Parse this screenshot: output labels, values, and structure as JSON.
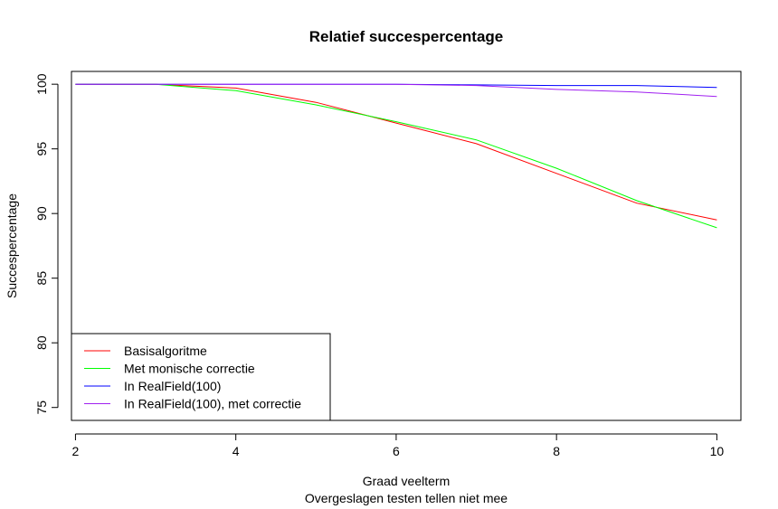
{
  "chart_data": {
    "type": "line",
    "title": "Relatief succespercentage",
    "xlabel": "Graad veelterm",
    "subxlabel": "Overgeslagen testen tellen niet mee",
    "ylabel": "Succespercentage",
    "xlim": [
      1.95,
      10.3
    ],
    "ylim": [
      74.0,
      100.99
    ],
    "xticks": [
      2,
      4,
      6,
      8,
      10
    ],
    "yticks": [
      75,
      80,
      85,
      90,
      95,
      100
    ],
    "x": [
      2,
      3,
      4,
      5,
      6,
      7,
      8,
      9,
      10
    ],
    "series": [
      {
        "name": "Basisalgoritme",
        "color": "#ff0000",
        "values": [
          100.0,
          100.0,
          99.7,
          98.6,
          97.0,
          95.4,
          93.1,
          90.8,
          89.5
        ]
      },
      {
        "name": "Met monische correctie",
        "color": "#00ff00",
        "values": [
          100.0,
          100.0,
          99.5,
          98.4,
          97.1,
          95.7,
          93.5,
          91.0,
          88.9
        ]
      },
      {
        "name": "In RealField(100)",
        "color": "#0000ff",
        "values": [
          100.0,
          100.0,
          100.0,
          100.0,
          100.0,
          99.95,
          99.9,
          99.9,
          99.75
        ]
      },
      {
        "name": "In RealField(100), met correctie",
        "color": "#a020f0",
        "values": [
          100.0,
          100.0,
          100.0,
          100.0,
          100.0,
          99.9,
          99.6,
          99.4,
          99.05
        ]
      }
    ],
    "legend_position": "bottom-left",
    "grid": false
  }
}
